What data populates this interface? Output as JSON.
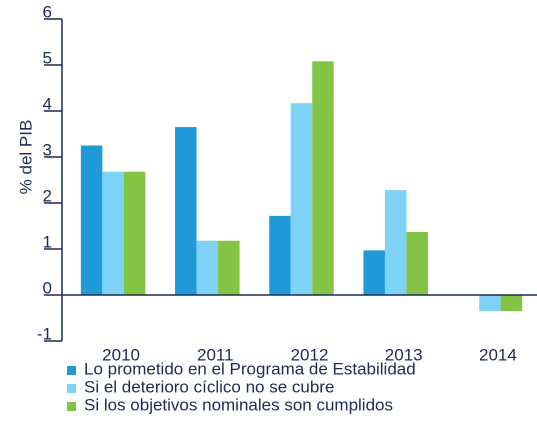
{
  "chart_data": {
    "type": "bar",
    "y_label": "% del PIB",
    "categories": [
      "2010",
      "2011",
      "2012",
      "2013",
      "2014"
    ],
    "series": [
      {
        "name": "Lo prometido en el Programa de Estabilidad",
        "color": "#1f9ad6",
        "values": [
          3.25,
          3.65,
          1.72,
          0.97,
          null
        ]
      },
      {
        "name": "Si el deterioro cíclico no se cubre",
        "color": "#7dd2f6",
        "values": [
          2.68,
          1.18,
          4.17,
          2.28,
          -0.35
        ]
      },
      {
        "name": "Si los objetivos nominales son cumplidos",
        "color": "#84c444",
        "values": [
          2.68,
          1.18,
          5.08,
          1.37,
          -0.35
        ]
      }
    ],
    "ylim": [
      -1,
      6
    ],
    "yticks": [
      -1,
      0,
      1,
      2,
      3,
      4,
      5,
      6
    ],
    "grid": false
  }
}
